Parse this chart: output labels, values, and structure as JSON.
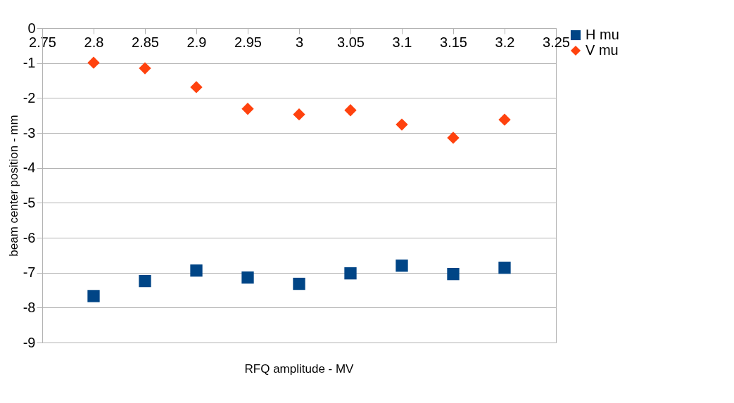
{
  "chart_data": {
    "type": "scatter",
    "xlabel": "RFQ amplitude - MV",
    "ylabel": "beam center position - mm",
    "x": [
      2.8,
      2.85,
      2.9,
      2.95,
      3.0,
      3.05,
      3.1,
      3.15,
      3.2
    ],
    "series": [
      {
        "name": "H mu",
        "color": "#004586",
        "marker": "square",
        "values": [
          -7.67,
          -7.24,
          -6.94,
          -7.14,
          -7.32,
          -7.02,
          -6.8,
          -7.04,
          -6.86
        ]
      },
      {
        "name": "V mu",
        "color": "#ff420e",
        "marker": "diamond",
        "values": [
          -0.99,
          -1.15,
          -1.69,
          -2.31,
          -2.47,
          -2.35,
          -2.76,
          -3.14,
          -2.62
        ]
      }
    ],
    "xlim": [
      2.75,
      3.25
    ],
    "xticks": [
      2.75,
      2.8,
      2.85,
      2.9,
      2.95,
      3,
      3.05,
      3.1,
      3.15,
      3.2,
      3.25
    ],
    "ylim": [
      -9,
      0
    ],
    "yticks": [
      -9,
      -8,
      -7,
      -6,
      -5,
      -4,
      -3,
      -2,
      -1,
      0
    ],
    "grid": "y",
    "legend": "right"
  }
}
